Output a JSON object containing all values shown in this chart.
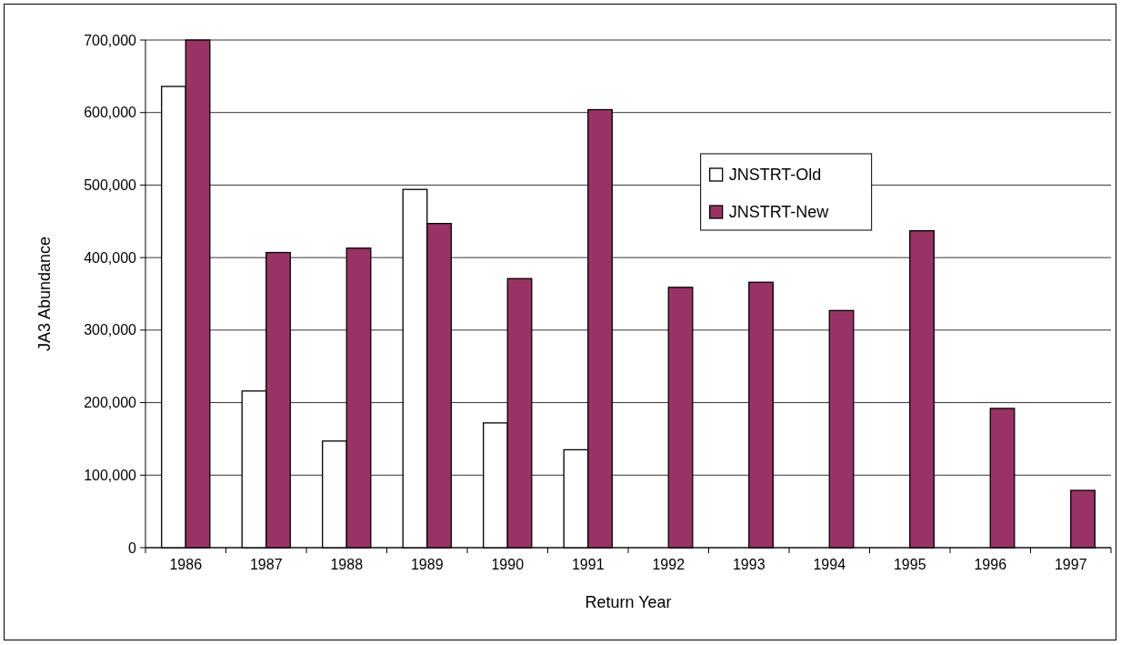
{
  "chart_data": {
    "type": "bar",
    "xlabel": "Return Year",
    "ylabel": "JA3 Abundance",
    "categories": [
      "1986",
      "1987",
      "1988",
      "1989",
      "1990",
      "1991",
      "1992",
      "1993",
      "1994",
      "1995",
      "1996",
      "1997"
    ],
    "series": [
      {
        "name": "JNSTRT-Old",
        "color": "#ffffff",
        "values": [
          636000,
          216000,
          147000,
          494000,
          172000,
          135000,
          null,
          null,
          null,
          null,
          null,
          null
        ]
      },
      {
        "name": "JNSTRT-New",
        "color": "#993366",
        "values": [
          700000,
          407000,
          413000,
          447000,
          371000,
          604000,
          359000,
          366000,
          327000,
          437000,
          192000,
          79000
        ]
      }
    ],
    "ylim": [
      0,
      700000
    ],
    "yticks": [
      {
        "value": 0,
        "label": "0"
      },
      {
        "value": 100000,
        "label": "100,000"
      },
      {
        "value": 200000,
        "label": "200,000"
      },
      {
        "value": 300000,
        "label": "300,000"
      },
      {
        "value": 400000,
        "label": "400,000"
      },
      {
        "value": 500000,
        "label": "500,000"
      },
      {
        "value": 600000,
        "label": "600,000"
      },
      {
        "value": 700000,
        "label": "700,000"
      }
    ],
    "grid": "y",
    "legend": "top right"
  }
}
